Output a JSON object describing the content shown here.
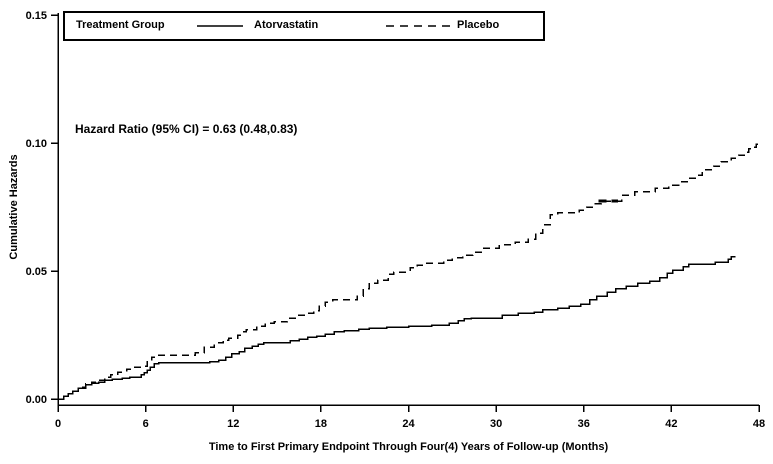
{
  "chart_data": {
    "type": "line",
    "subtype": "step-after-cumulative-hazard",
    "title": "",
    "legend_title": "Treatment Group",
    "annotation": "Hazard Ratio (95% CI) = 0.63 (0.48,0.83)",
    "xlabel": "Time to First Primary Endpoint Through Four(4) Years of Follow-up (Months)",
    "ylabel": "Cumulative Hazards",
    "xlim": [
      0,
      48
    ],
    "ylim": [
      0,
      0.15
    ],
    "x_ticks": [
      0,
      6,
      12,
      18,
      24,
      30,
      36,
      42,
      48
    ],
    "x_tick_labels": [
      "0",
      "6",
      "12",
      "18",
      "24",
      "30",
      "36",
      "42",
      "48"
    ],
    "y_ticks": [
      0,
      0.05,
      0.1,
      0.15
    ],
    "y_tick_labels": [
      "0.00",
      "0.05",
      "0.10",
      "0.15"
    ],
    "grid": false,
    "legend_position": "top-inside-box",
    "line_color": "#000000",
    "background_color": "#ffffff",
    "series": [
      {
        "name": "Atorvastatin",
        "line_style": "solid",
        "end_month": 46.4,
        "points": [
          [
            0,
            0
          ],
          [
            0.4,
            0.001
          ],
          [
            0.7,
            0.002
          ],
          [
            1.0,
            0.003
          ],
          [
            1.4,
            0.0043
          ],
          [
            1.9,
            0.0055
          ],
          [
            2.3,
            0.0062
          ],
          [
            2.8,
            0.0066
          ],
          [
            3.2,
            0.0074
          ],
          [
            3.7,
            0.0078
          ],
          [
            4.4,
            0.0082
          ],
          [
            4.9,
            0.0086
          ],
          [
            5.7,
            0.0094
          ],
          [
            5.9,
            0.0102
          ],
          [
            6.1,
            0.0113
          ],
          [
            6.3,
            0.0125
          ],
          [
            6.6,
            0.0137
          ],
          [
            6.9,
            0.0141
          ],
          [
            10.4,
            0.0145
          ],
          [
            11.0,
            0.0152
          ],
          [
            11.5,
            0.0164
          ],
          [
            11.9,
            0.0176
          ],
          [
            12.4,
            0.0184
          ],
          [
            12.8,
            0.0199
          ],
          [
            13.3,
            0.0207
          ],
          [
            13.7,
            0.0215
          ],
          [
            14.1,
            0.0219
          ],
          [
            15.9,
            0.0227
          ],
          [
            16.5,
            0.0234
          ],
          [
            17.1,
            0.0242
          ],
          [
            17.7,
            0.0246
          ],
          [
            18.3,
            0.0254
          ],
          [
            18.9,
            0.0262
          ],
          [
            19.6,
            0.0266
          ],
          [
            20.6,
            0.0273
          ],
          [
            21.3,
            0.0277
          ],
          [
            22.5,
            0.0281
          ],
          [
            24.0,
            0.0285
          ],
          [
            25.6,
            0.0289
          ],
          [
            26.8,
            0.0297
          ],
          [
            27.4,
            0.0305
          ],
          [
            27.8,
            0.0313
          ],
          [
            28.3,
            0.0316
          ],
          [
            30.4,
            0.0328
          ],
          [
            31.5,
            0.0336
          ],
          [
            32.6,
            0.034
          ],
          [
            33.2,
            0.0348
          ],
          [
            34.2,
            0.0355
          ],
          [
            35.0,
            0.0363
          ],
          [
            35.8,
            0.0371
          ],
          [
            36.4,
            0.0387
          ],
          [
            36.9,
            0.0402
          ],
          [
            37.6,
            0.0418
          ],
          [
            38.2,
            0.043
          ],
          [
            38.9,
            0.0441
          ],
          [
            39.7,
            0.0453
          ],
          [
            40.5,
            0.0461
          ],
          [
            41.2,
            0.0473
          ],
          [
            41.7,
            0.0492
          ],
          [
            42.1,
            0.0504
          ],
          [
            42.8,
            0.0516
          ],
          [
            43.2,
            0.0527
          ],
          [
            45.0,
            0.0535
          ],
          [
            45.9,
            0.0547
          ],
          [
            46.1,
            0.0555
          ]
        ]
      },
      {
        "name": "Placebo",
        "line_style": "dashed",
        "end_month": 48.0,
        "points": [
          [
            0,
            0
          ],
          [
            0.4,
            0.001
          ],
          [
            0.7,
            0.002
          ],
          [
            1.0,
            0.0031
          ],
          [
            1.4,
            0.0047
          ],
          [
            1.9,
            0.0059
          ],
          [
            2.3,
            0.0066
          ],
          [
            2.8,
            0.0074
          ],
          [
            3.2,
            0.0086
          ],
          [
            3.6,
            0.0094
          ],
          [
            4.1,
            0.0105
          ],
          [
            4.7,
            0.0117
          ],
          [
            5.2,
            0.0125
          ],
          [
            5.8,
            0.0129
          ],
          [
            6.1,
            0.0145
          ],
          [
            6.4,
            0.0164
          ],
          [
            6.8,
            0.0172
          ],
          [
            9.4,
            0.018
          ],
          [
            10.0,
            0.0203
          ],
          [
            10.7,
            0.0219
          ],
          [
            11.3,
            0.023
          ],
          [
            11.7,
            0.0238
          ],
          [
            12.3,
            0.025
          ],
          [
            12.6,
            0.0262
          ],
          [
            12.9,
            0.027
          ],
          [
            13.6,
            0.0285
          ],
          [
            14.2,
            0.0297
          ],
          [
            14.8,
            0.0301
          ],
          [
            15.7,
            0.0316
          ],
          [
            16.4,
            0.0328
          ],
          [
            17.0,
            0.0336
          ],
          [
            17.5,
            0.0344
          ],
          [
            17.9,
            0.0363
          ],
          [
            18.3,
            0.0379
          ],
          [
            18.8,
            0.0387
          ],
          [
            20.5,
            0.0402
          ],
          [
            20.9,
            0.043
          ],
          [
            21.3,
            0.0453
          ],
          [
            21.9,
            0.0465
          ],
          [
            22.6,
            0.0488
          ],
          [
            23.0,
            0.0496
          ],
          [
            24.1,
            0.0512
          ],
          [
            24.6,
            0.0523
          ],
          [
            25.0,
            0.0531
          ],
          [
            26.4,
            0.0543
          ],
          [
            27.0,
            0.0551
          ],
          [
            27.7,
            0.0562
          ],
          [
            28.4,
            0.0574
          ],
          [
            29.1,
            0.059
          ],
          [
            30.2,
            0.0602
          ],
          [
            31.3,
            0.0613
          ],
          [
            32.2,
            0.0625
          ],
          [
            32.7,
            0.0648
          ],
          [
            33.2,
            0.068
          ],
          [
            33.7,
            0.0719
          ],
          [
            34.2,
            0.0727
          ],
          [
            35.7,
            0.0738
          ],
          [
            36.2,
            0.075
          ],
          [
            36.8,
            0.0762
          ],
          [
            37.2,
            0.0773
          ],
          [
            38.6,
            0.0797
          ],
          [
            39.5,
            0.0809
          ],
          [
            40.9,
            0.0824
          ],
          [
            41.8,
            0.0836
          ],
          [
            42.5,
            0.0848
          ],
          [
            43.2,
            0.0863
          ],
          [
            43.7,
            0.0875
          ],
          [
            44.1,
            0.0895
          ],
          [
            44.9,
            0.091
          ],
          [
            45.4,
            0.0926
          ],
          [
            46.1,
            0.0941
          ],
          [
            46.6,
            0.0953
          ],
          [
            47.0,
            0.0965
          ],
          [
            47.3,
            0.0977
          ],
          [
            47.6,
            0.0984
          ],
          [
            47.8,
            0.0996
          ]
        ],
        "bold_dash_segment": {
          "month_start": 37.0,
          "month_end": 38.35,
          "value": 0.0773
        }
      }
    ]
  }
}
